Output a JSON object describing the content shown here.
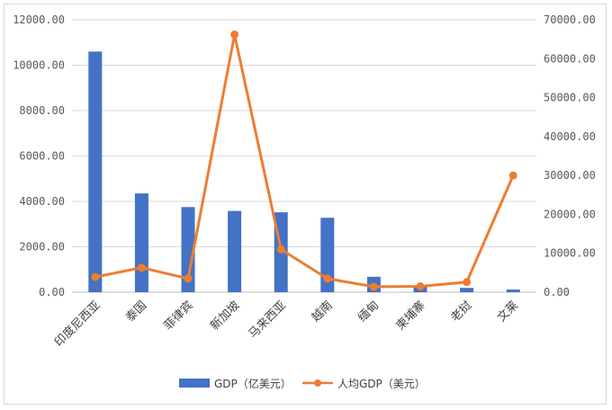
{
  "chart_data": {
    "type": "bar",
    "categories": [
      "印度尼西亚",
      "泰国",
      "菲律宾",
      "新加坡",
      "马来西亚",
      "越南",
      "缅甸",
      "柬埔寨",
      "老挝",
      "文莱"
    ],
    "series": [
      {
        "name": "GDP（亿美元）",
        "type": "bar",
        "axis": "left",
        "color": "#4472C4",
        "values": [
          10600,
          4350,
          3750,
          3580,
          3520,
          3280,
          680,
          270,
          190,
          120
        ]
      },
      {
        "name": "人均GDP（美元）",
        "type": "line",
        "axis": "right",
        "color": "#ED7D31",
        "values": [
          3900,
          6300,
          3500,
          66200,
          11000,
          3500,
          1400,
          1500,
          2600,
          30000
        ]
      }
    ],
    "y_left": {
      "min": 0,
      "max": 12000,
      "step": 2000,
      "ticks": [
        "0.00",
        "2000.00",
        "4000.00",
        "6000.00",
        "8000.00",
        "10000.00",
        "12000.00"
      ]
    },
    "y_right": {
      "min": 0,
      "max": 70000,
      "step": 10000,
      "ticks": [
        "0.00",
        "10000.00",
        "20000.00",
        "30000.00",
        "40000.00",
        "50000.00",
        "60000.00",
        "70000.00"
      ]
    },
    "grid": true,
    "legend_position": "bottom"
  }
}
